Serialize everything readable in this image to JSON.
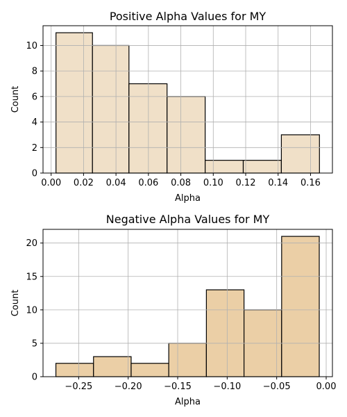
{
  "chart_data": [
    {
      "type": "histogram",
      "title": "Positive Alpha Values for MY",
      "xlabel": "Alpha",
      "ylabel": "Count",
      "bar_color": "#f0e0c8",
      "bin_edges": [
        0.003,
        0.0255,
        0.048,
        0.0715,
        0.095,
        0.1185,
        0.142,
        0.1655
      ],
      "values": [
        11,
        10,
        7,
        6,
        1,
        1,
        3
      ],
      "xlim": [
        -0.005,
        0.1735
      ],
      "ylim": [
        0,
        11.55
      ],
      "xticks": [
        0.0,
        0.02,
        0.04,
        0.06,
        0.08,
        0.1,
        0.12,
        0.14,
        0.16
      ],
      "xtick_labels": [
        "0.00",
        "0.02",
        "0.04",
        "0.06",
        "0.08",
        "0.10",
        "0.12",
        "0.14",
        "0.16"
      ],
      "yticks": [
        0,
        2,
        4,
        6,
        8,
        10
      ],
      "ytick_labels": [
        "0",
        "2",
        "4",
        "6",
        "8",
        "10"
      ],
      "grid": true
    },
    {
      "type": "histogram",
      "title": "Negative Alpha Values for MY",
      "xlabel": "Alpha",
      "ylabel": "Count",
      "bar_color": "#ebcfa6",
      "bin_edges": [
        -0.273,
        -0.235,
        -0.197,
        -0.159,
        -0.121,
        -0.083,
        -0.045,
        -0.007
      ],
      "values": [
        2,
        3,
        2,
        5,
        13,
        10,
        21
      ],
      "xlim": [
        -0.286,
        0.0063
      ],
      "ylim": [
        0,
        22.05
      ],
      "xticks": [
        -0.25,
        -0.2,
        -0.15,
        -0.1,
        -0.05,
        0.0
      ],
      "xtick_labels": [
        "−0.25",
        "−0.20",
        "−0.15",
        "−0.10",
        "−0.05",
        "0.00"
      ],
      "yticks": [
        0,
        5,
        10,
        15,
        20
      ],
      "ytick_labels": [
        "0",
        "5",
        "10",
        "15",
        "20"
      ],
      "grid": true
    }
  ]
}
